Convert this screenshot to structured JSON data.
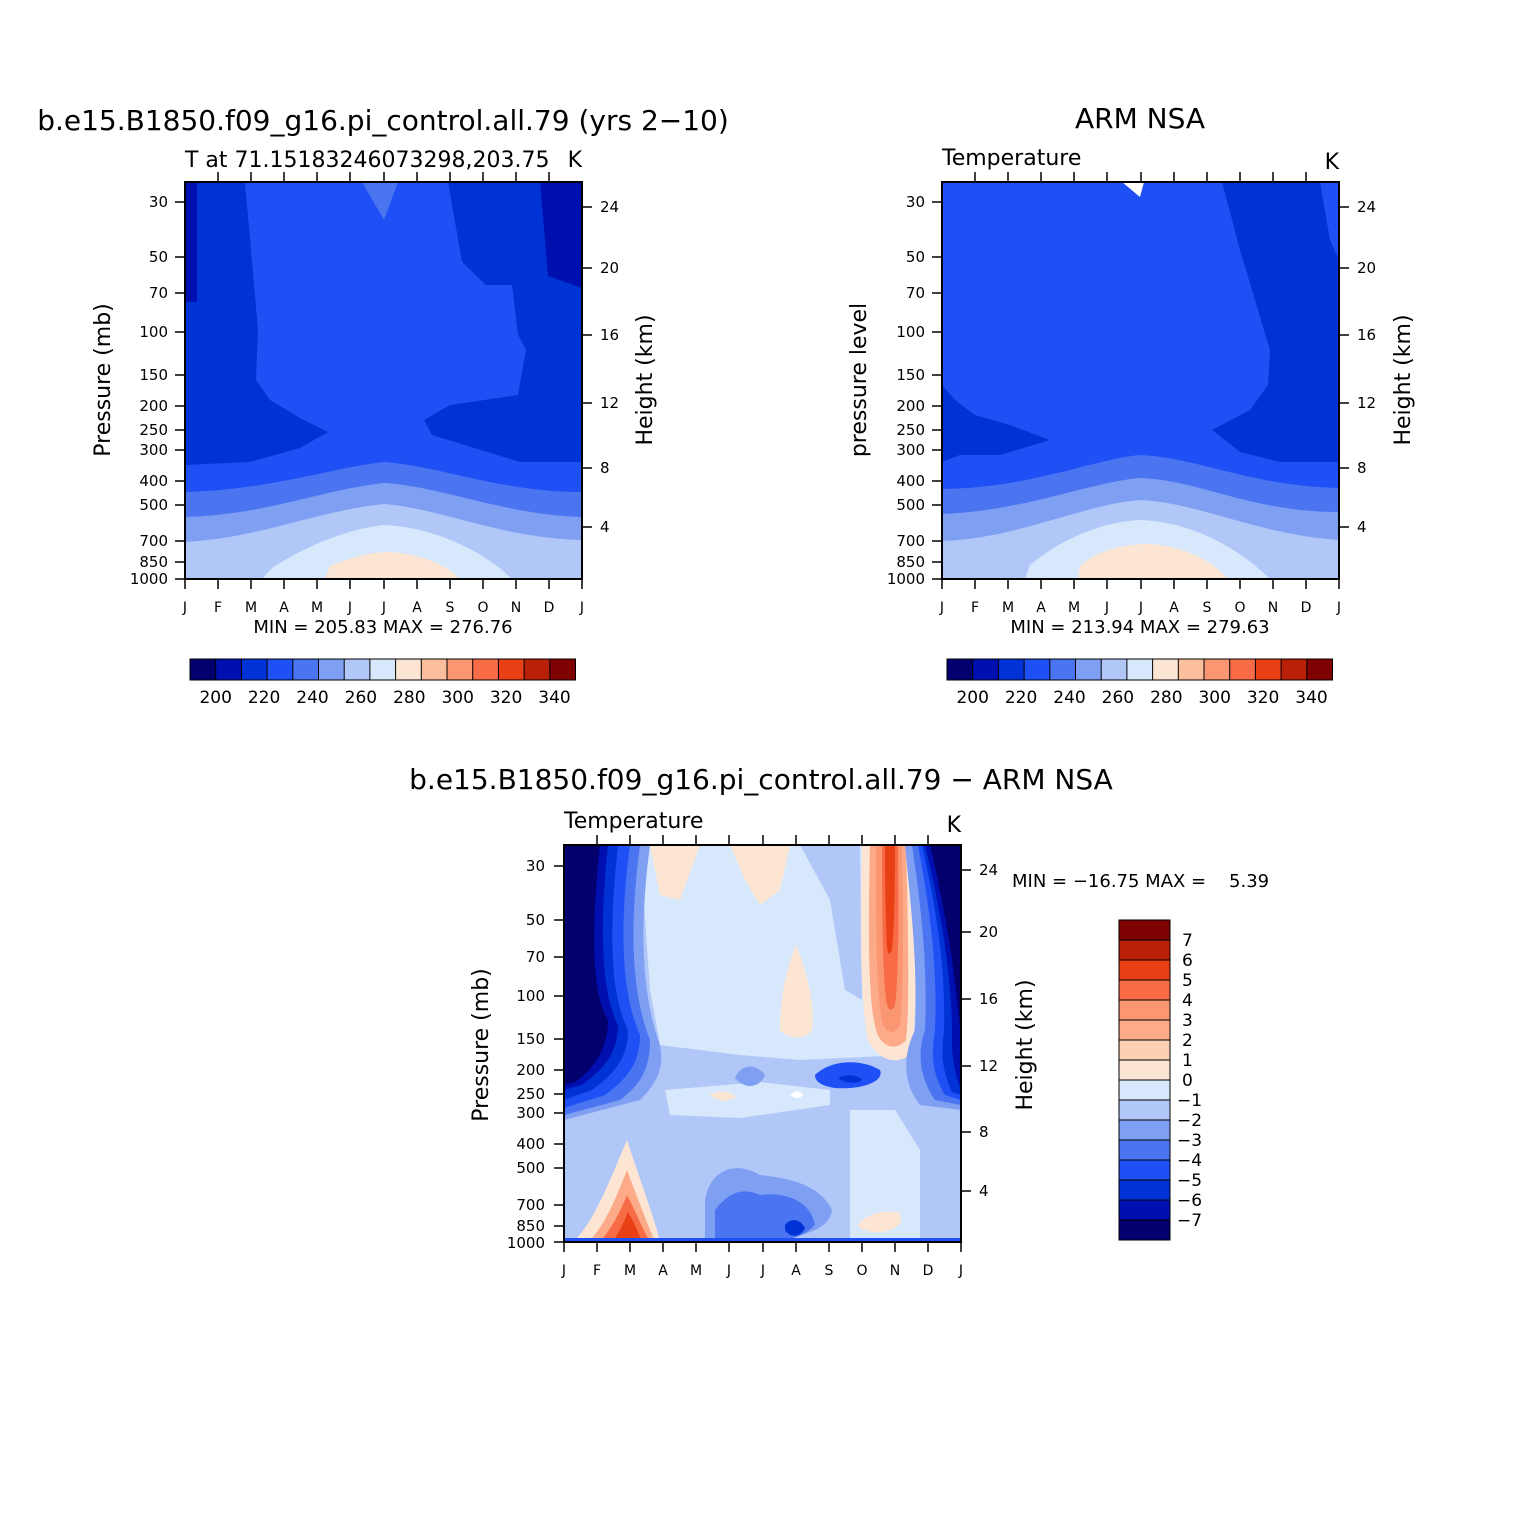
{
  "chart_data": [
    {
      "type": "contour",
      "title": "b.e15.B1850.f09_g16.pi_control.all.79 (yrs 2−10)",
      "subtitle_left": "T at 71.15183246073298,203.75",
      "subtitle_right": "K",
      "ylabel": "Pressure (mb)",
      "ylabel_right": "Height (km)",
      "months": [
        "J",
        "F",
        "M",
        "A",
        "M",
        "J",
        "J",
        "A",
        "S",
        "O",
        "N",
        "D",
        "J"
      ],
      "pressure_ticks": [
        "30",
        "50",
        "70",
        "100",
        "150",
        "200",
        "250",
        "300",
        "400",
        "500",
        "700",
        "850",
        "1000"
      ],
      "height_ticks": [
        "24",
        "20",
        "16",
        "12",
        "8",
        "4"
      ],
      "stats": "MIN = 205.83 MAX = 276.76",
      "min": 205.83,
      "max": 276.76,
      "colorbar_labels": [
        "200",
        "220",
        "240",
        "260",
        "280",
        "300",
        "320",
        "340"
      ]
    },
    {
      "type": "contour",
      "title": "ARM NSA",
      "subtitle_left": "Temperature",
      "subtitle_right": "K",
      "ylabel": "pressure level",
      "ylabel_right": "Height (km)",
      "months": [
        "J",
        "F",
        "M",
        "A",
        "M",
        "J",
        "J",
        "A",
        "S",
        "O",
        "N",
        "D",
        "J"
      ],
      "pressure_ticks": [
        "30",
        "50",
        "70",
        "100",
        "150",
        "200",
        "250",
        "300",
        "400",
        "500",
        "700",
        "850",
        "1000"
      ],
      "height_ticks": [
        "24",
        "20",
        "16",
        "12",
        "8",
        "4"
      ],
      "stats": "MIN = 213.94 MAX = 279.63",
      "min": 213.94,
      "max": 279.63,
      "colorbar_labels": [
        "200",
        "220",
        "240",
        "260",
        "280",
        "300",
        "320",
        "340"
      ]
    },
    {
      "type": "contour",
      "title": "b.e15.B1850.f09_g16.pi_control.all.79 − ARM NSA",
      "subtitle_left": "Temperature",
      "subtitle_right": "K",
      "ylabel": "Pressure (mb)",
      "ylabel_right": "Height (km)",
      "months": [
        "J",
        "F",
        "M",
        "A",
        "M",
        "J",
        "J",
        "A",
        "S",
        "O",
        "N",
        "D",
        "J"
      ],
      "pressure_ticks": [
        "30",
        "50",
        "70",
        "100",
        "150",
        "200",
        "250",
        "300",
        "400",
        "500",
        "700",
        "850",
        "1000"
      ],
      "height_ticks": [
        "24",
        "20",
        "16",
        "12",
        "8",
        "4"
      ],
      "stats": "MIN = −16.75 MAX =    5.39",
      "min": -16.75,
      "max": 5.39,
      "colorbar_labels": [
        "7",
        "6",
        "5",
        "4",
        "3",
        "2",
        "1",
        "0",
        "−1",
        "−2",
        "−3",
        "−4",
        "−5",
        "−6",
        "−7"
      ]
    }
  ],
  "colors": {
    "abs_scale": [
      "#03006e",
      "#0010b0",
      "#0033d6",
      "#1e50f5",
      "#4a74f0",
      "#7f9ff3",
      "#b1c7f8",
      "#d7e8fc",
      "#fde5d3",
      "#fcbf9e",
      "#fa9671",
      "#f76b46",
      "#e83f14",
      "#b82007",
      "#7e0202"
    ],
    "diff_scale": [
      "#7e0202",
      "#b82007",
      "#e83f14",
      "#f76b46",
      "#fa9671",
      "#fcaa88",
      "#fdcfb3",
      "#fde5d3",
      "#d7e8fc",
      "#b1c7f8",
      "#7f9ff3",
      "#4a74f0",
      "#1e50f5",
      "#0033d6",
      "#0010b0",
      "#03006e"
    ]
  }
}
